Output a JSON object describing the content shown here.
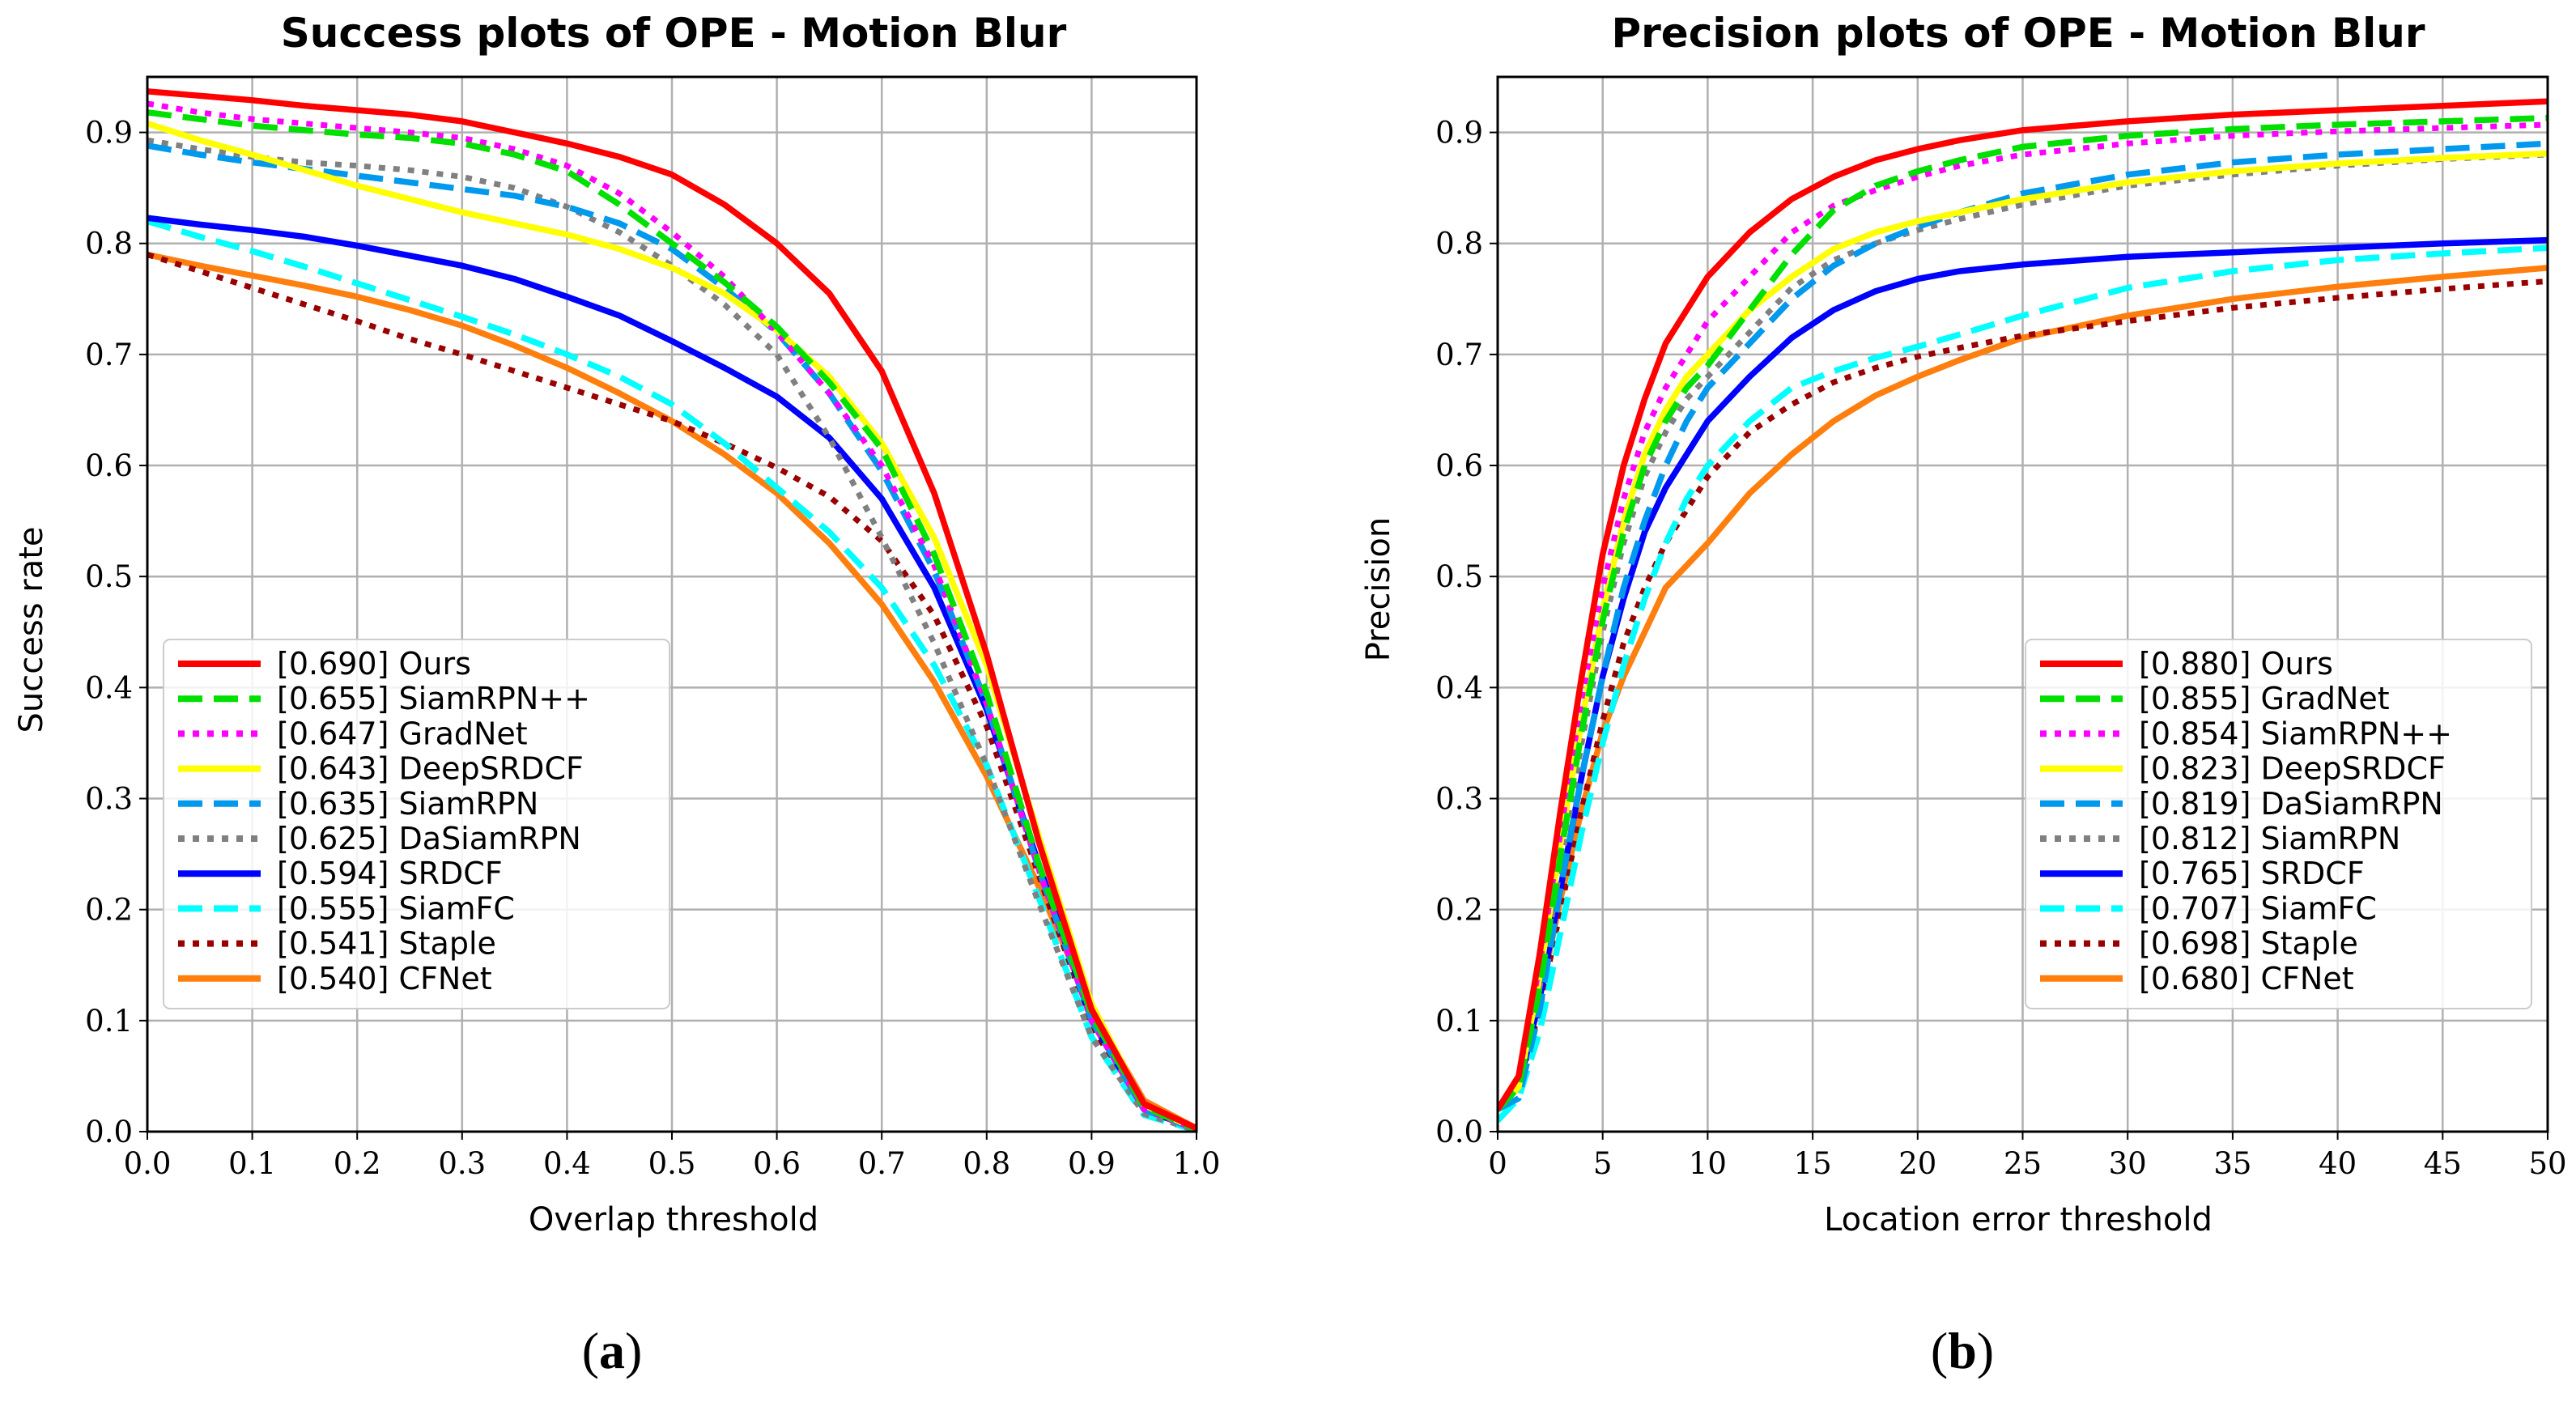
{
  "chart_data": [
    {
      "id": "a",
      "type": "line",
      "title": "Success plots of OPE - Motion Blur",
      "xlabel": "Overlap threshold",
      "ylabel": "Success rate",
      "xlim": [
        0,
        1
      ],
      "ylim": [
        0,
        0.95
      ],
      "xticks": [
        0.0,
        0.1,
        0.2,
        0.3,
        0.4,
        0.5,
        0.6,
        0.7,
        0.8,
        0.9,
        1.0
      ],
      "xtick_labels": [
        "0.0",
        "0.1",
        "0.2",
        "0.3",
        "0.4",
        "0.5",
        "0.6",
        "0.7",
        "0.8",
        "0.9",
        "1.0"
      ],
      "yticks": [
        0.0,
        0.1,
        0.2,
        0.3,
        0.4,
        0.5,
        0.6,
        0.7,
        0.8,
        0.9
      ],
      "ytick_labels": [
        "0.0",
        "0.1",
        "0.2",
        "0.3",
        "0.4",
        "0.5",
        "0.6",
        "0.7",
        "0.8",
        "0.9"
      ],
      "grid": true,
      "legend_position": "lower-left",
      "caption": "a",
      "x": [
        0,
        0.05,
        0.1,
        0.15,
        0.2,
        0.25,
        0.3,
        0.35,
        0.4,
        0.45,
        0.5,
        0.55,
        0.6,
        0.65,
        0.7,
        0.75,
        0.8,
        0.85,
        0.9,
        0.95,
        1.0
      ],
      "series": [
        {
          "name": "Ours",
          "label": "[0.690] Ours",
          "color": "#ff0000",
          "style": "solid",
          "values": [
            0.937,
            0.933,
            0.929,
            0.924,
            0.92,
            0.916,
            0.91,
            0.9,
            0.89,
            0.878,
            0.862,
            0.835,
            0.8,
            0.755,
            0.685,
            0.575,
            0.43,
            0.26,
            0.11,
            0.025,
            0.003
          ]
        },
        {
          "name": "SiamRPN++",
          "label": "[0.655] SiamRPN++",
          "color": "#00e000",
          "style": "dashed",
          "values": [
            0.918,
            0.912,
            0.906,
            0.902,
            0.898,
            0.895,
            0.89,
            0.88,
            0.865,
            0.835,
            0.8,
            0.765,
            0.725,
            0.675,
            0.615,
            0.52,
            0.395,
            0.24,
            0.105,
            0.022,
            0.002
          ]
        },
        {
          "name": "GradNet",
          "label": "[0.647] GradNet",
          "color": "#ff00ff",
          "style": "dotted",
          "values": [
            0.926,
            0.918,
            0.912,
            0.908,
            0.904,
            0.9,
            0.895,
            0.885,
            0.87,
            0.845,
            0.81,
            0.77,
            0.72,
            0.665,
            0.6,
            0.51,
            0.385,
            0.235,
            0.1,
            0.02,
            0.002
          ]
        },
        {
          "name": "DeepSRDCF",
          "label": "[0.643] DeepSRDCF",
          "color": "#ffff00",
          "style": "solid",
          "values": [
            0.908,
            0.893,
            0.88,
            0.866,
            0.852,
            0.84,
            0.828,
            0.818,
            0.808,
            0.795,
            0.778,
            0.755,
            0.722,
            0.68,
            0.62,
            0.535,
            0.42,
            0.265,
            0.115,
            0.024,
            0.002
          ]
        },
        {
          "name": "SiamRPN",
          "label": "[0.635] SiamRPN",
          "color": "#0099ee",
          "style": "dashed",
          "values": [
            0.888,
            0.88,
            0.873,
            0.867,
            0.861,
            0.855,
            0.849,
            0.843,
            0.833,
            0.818,
            0.795,
            0.76,
            0.72,
            0.665,
            0.595,
            0.505,
            0.385,
            0.235,
            0.1,
            0.02,
            0.002
          ]
        },
        {
          "name": "DaSiamRPN",
          "label": "[0.625] DaSiamRPN",
          "color": "#808080",
          "style": "dotted",
          "values": [
            0.893,
            0.885,
            0.878,
            0.873,
            0.87,
            0.866,
            0.86,
            0.85,
            0.833,
            0.81,
            0.78,
            0.745,
            0.7,
            0.625,
            0.535,
            0.44,
            0.33,
            0.205,
            0.085,
            0.016,
            0.001
          ]
        },
        {
          "name": "SRDCF",
          "label": "[0.594] SRDCF",
          "color": "#0000ff",
          "style": "solid",
          "values": [
            0.823,
            0.817,
            0.812,
            0.806,
            0.798,
            0.789,
            0.78,
            0.768,
            0.752,
            0.735,
            0.712,
            0.688,
            0.662,
            0.625,
            0.57,
            0.49,
            0.38,
            0.24,
            0.1,
            0.02,
            0.002
          ]
        },
        {
          "name": "SiamFC",
          "label": "[0.555] SiamFC",
          "color": "#00ffff",
          "style": "dashed",
          "values": [
            0.82,
            0.806,
            0.793,
            0.779,
            0.764,
            0.749,
            0.734,
            0.718,
            0.7,
            0.68,
            0.655,
            0.62,
            0.58,
            0.54,
            0.49,
            0.42,
            0.33,
            0.21,
            0.085,
            0.015,
            0.001
          ]
        },
        {
          "name": "Staple",
          "label": "[0.541] Staple",
          "color": "#990000",
          "style": "dotted",
          "values": [
            0.79,
            0.775,
            0.76,
            0.745,
            0.73,
            0.714,
            0.7,
            0.685,
            0.67,
            0.655,
            0.64,
            0.62,
            0.598,
            0.572,
            0.532,
            0.465,
            0.365,
            0.23,
            0.095,
            0.02,
            0.002
          ]
        },
        {
          "name": "CFNet",
          "label": "[0.540] CFNet",
          "color": "#ff7f0e",
          "style": "solid",
          "values": [
            0.79,
            0.78,
            0.771,
            0.762,
            0.752,
            0.74,
            0.726,
            0.708,
            0.688,
            0.665,
            0.64,
            0.61,
            0.575,
            0.53,
            0.475,
            0.405,
            0.32,
            0.22,
            0.11,
            0.028,
            0.003
          ]
        }
      ]
    },
    {
      "id": "b",
      "type": "line",
      "title": "Precision plots of OPE - Motion Blur",
      "xlabel": "Location error threshold",
      "ylabel": "Precision",
      "xlim": [
        0,
        50
      ],
      "ylim": [
        0,
        0.95
      ],
      "xticks": [
        0,
        5,
        10,
        15,
        20,
        25,
        30,
        35,
        40,
        45,
        50
      ],
      "xtick_labels": [
        "0",
        "5",
        "10",
        "15",
        "20",
        "25",
        "30",
        "35",
        "40",
        "45",
        "50"
      ],
      "yticks": [
        0.0,
        0.1,
        0.2,
        0.3,
        0.4,
        0.5,
        0.6,
        0.7,
        0.8,
        0.9
      ],
      "ytick_labels": [
        "0.0",
        "0.1",
        "0.2",
        "0.3",
        "0.4",
        "0.5",
        "0.6",
        "0.7",
        "0.8",
        "0.9"
      ],
      "grid": true,
      "legend_position": "lower-right",
      "caption": "b",
      "x": [
        0,
        1,
        2,
        3,
        4,
        5,
        6,
        7,
        8,
        9,
        10,
        12,
        14,
        16,
        18,
        20,
        22,
        25,
        30,
        35,
        40,
        45,
        50
      ],
      "series": [
        {
          "name": "Ours",
          "label": "[0.880] Ours",
          "color": "#ff0000",
          "style": "solid",
          "values": [
            0.02,
            0.05,
            0.16,
            0.29,
            0.41,
            0.52,
            0.6,
            0.66,
            0.71,
            0.74,
            0.77,
            0.81,
            0.84,
            0.86,
            0.875,
            0.885,
            0.893,
            0.902,
            0.91,
            0.916,
            0.92,
            0.924,
            0.928
          ]
        },
        {
          "name": "GradNet",
          "label": "[0.855] GradNet",
          "color": "#00e000",
          "style": "dashed",
          "values": [
            0.02,
            0.04,
            0.13,
            0.25,
            0.36,
            0.46,
            0.54,
            0.6,
            0.64,
            0.67,
            0.69,
            0.74,
            0.79,
            0.83,
            0.852,
            0.865,
            0.875,
            0.887,
            0.897,
            0.903,
            0.907,
            0.91,
            0.913
          ]
        },
        {
          "name": "SiamRPN++",
          "label": "[0.854] SiamRPN++",
          "color": "#ff00ff",
          "style": "dotted",
          "values": [
            0.02,
            0.05,
            0.15,
            0.27,
            0.39,
            0.49,
            0.57,
            0.63,
            0.67,
            0.7,
            0.73,
            0.77,
            0.81,
            0.834,
            0.848,
            0.86,
            0.87,
            0.88,
            0.89,
            0.897,
            0.901,
            0.904,
            0.907
          ]
        },
        {
          "name": "DeepSRDCF",
          "label": "[0.823] DeepSRDCF",
          "color": "#ffff00",
          "style": "solid",
          "values": [
            0.02,
            0.04,
            0.14,
            0.26,
            0.37,
            0.47,
            0.55,
            0.61,
            0.65,
            0.68,
            0.7,
            0.74,
            0.77,
            0.795,
            0.81,
            0.82,
            0.828,
            0.84,
            0.855,
            0.865,
            0.872,
            0.877,
            0.881
          ]
        },
        {
          "name": "DaSiamRPN",
          "label": "[0.819] DaSiamRPN",
          "color": "#0099ee",
          "style": "dashed",
          "values": [
            0.02,
            0.03,
            0.11,
            0.22,
            0.32,
            0.41,
            0.49,
            0.55,
            0.6,
            0.64,
            0.67,
            0.71,
            0.75,
            0.78,
            0.8,
            0.815,
            0.828,
            0.845,
            0.862,
            0.873,
            0.88,
            0.885,
            0.89
          ]
        },
        {
          "name": "SiamRPN",
          "label": "[0.812] SiamRPN",
          "color": "#808080",
          "style": "dotted",
          "values": [
            0.02,
            0.04,
            0.13,
            0.24,
            0.35,
            0.45,
            0.53,
            0.59,
            0.63,
            0.66,
            0.68,
            0.72,
            0.76,
            0.785,
            0.8,
            0.812,
            0.822,
            0.835,
            0.852,
            0.862,
            0.87,
            0.876,
            0.88
          ]
        },
        {
          "name": "SRDCF",
          "label": "[0.765] SRDCF",
          "color": "#0000ff",
          "style": "solid",
          "values": [
            0.02,
            0.04,
            0.12,
            0.22,
            0.32,
            0.41,
            0.48,
            0.54,
            0.58,
            0.61,
            0.64,
            0.68,
            0.715,
            0.74,
            0.757,
            0.768,
            0.775,
            0.781,
            0.788,
            0.792,
            0.796,
            0.8,
            0.803
          ]
        },
        {
          "name": "SiamFC",
          "label": "[0.707] SiamFC",
          "color": "#00ffff",
          "style": "dashed",
          "values": [
            0.01,
            0.03,
            0.09,
            0.18,
            0.27,
            0.35,
            0.42,
            0.48,
            0.53,
            0.57,
            0.6,
            0.64,
            0.67,
            0.685,
            0.697,
            0.707,
            0.718,
            0.735,
            0.76,
            0.775,
            0.785,
            0.791,
            0.796
          ]
        },
        {
          "name": "Staple",
          "label": "[0.698] Staple",
          "color": "#990000",
          "style": "dotted",
          "values": [
            0.02,
            0.04,
            0.11,
            0.2,
            0.29,
            0.37,
            0.44,
            0.49,
            0.53,
            0.56,
            0.59,
            0.63,
            0.655,
            0.675,
            0.688,
            0.698,
            0.706,
            0.717,
            0.73,
            0.742,
            0.751,
            0.759,
            0.766
          ]
        },
        {
          "name": "CFNet",
          "label": "[0.680] CFNet",
          "color": "#ff7f0e",
          "style": "solid",
          "values": [
            0.02,
            0.04,
            0.12,
            0.21,
            0.29,
            0.36,
            0.41,
            0.45,
            0.49,
            0.51,
            0.53,
            0.575,
            0.61,
            0.64,
            0.663,
            0.68,
            0.695,
            0.715,
            0.735,
            0.75,
            0.761,
            0.77,
            0.778
          ]
        }
      ]
    }
  ]
}
